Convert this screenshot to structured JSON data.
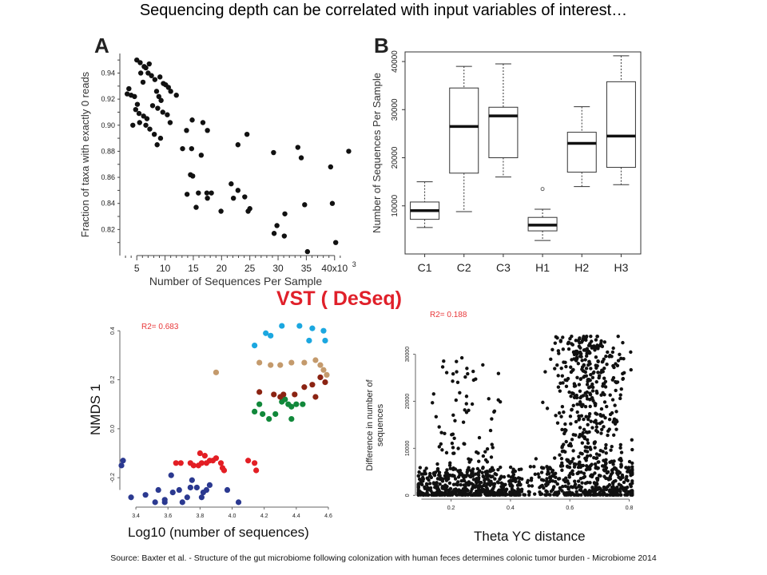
{
  "slide_title": "Sequencing depth can be correlated with input variables of interest…",
  "source_note": "Source:  Baxter et al. - Structure of the gut microbiome following colonization with human feces determines colonic tumor burden - Microbiome 2014",
  "section_heading": "VST ( DeSeq)",
  "colors": {
    "heading_red": "#e0202a",
    "r2_red": "#e8383a",
    "points": "#111111",
    "dark_blue": "#2b3990",
    "red": "#e31e24",
    "green": "#11883a",
    "brown": "#8b2312",
    "tan": "#c49a6c",
    "cyan": "#1ba7e0"
  },
  "chart_data": [
    {
      "panel": "A",
      "type": "scatter",
      "xlabel": "Number of Sequences Per Sample",
      "ylabel": "Fraction of taxa with exactly 0 reads",
      "x_ticks": [
        "5",
        "10",
        "15",
        "20",
        "25",
        "30",
        "35",
        "40x10"
      ],
      "x_tick_values": [
        5,
        10,
        15,
        20,
        25,
        30,
        35,
        40
      ],
      "x_multiplier_exponent": "3",
      "y_ticks": [
        "0.82",
        "0.84",
        "0.86",
        "0.88",
        "0.90",
        "0.92",
        "0.94"
      ],
      "y_tick_values": [
        0.82,
        0.84,
        0.86,
        0.88,
        0.9,
        0.92,
        0.94
      ],
      "xlim": [
        2,
        43
      ],
      "ylim": [
        0.8,
        0.955
      ],
      "points": [
        [
          5.0,
          0.95
        ],
        [
          5.6,
          0.948
        ],
        [
          6.3,
          0.945
        ],
        [
          6.6,
          0.944
        ],
        [
          7.2,
          0.947
        ],
        [
          6.1,
          0.933
        ],
        [
          5.7,
          0.94
        ],
        [
          7.0,
          0.94
        ],
        [
          7.6,
          0.938
        ],
        [
          8.2,
          0.935
        ],
        [
          9.1,
          0.937
        ],
        [
          9.7,
          0.932
        ],
        [
          10.1,
          0.931
        ],
        [
          10.6,
          0.929
        ],
        [
          11.0,
          0.926
        ],
        [
          12.0,
          0.923
        ],
        [
          8.5,
          0.926
        ],
        [
          8.9,
          0.922
        ],
        [
          9.3,
          0.919
        ],
        [
          4.0,
          0.923
        ],
        [
          3.6,
          0.928
        ],
        [
          4.6,
          0.922
        ],
        [
          5.1,
          0.916
        ],
        [
          4.8,
          0.912
        ],
        [
          5.4,
          0.909
        ],
        [
          6.2,
          0.907
        ],
        [
          6.8,
          0.905
        ],
        [
          7.8,
          0.915
        ],
        [
          8.7,
          0.913
        ],
        [
          9.6,
          0.91
        ],
        [
          10.4,
          0.908
        ],
        [
          10.9,
          0.902
        ],
        [
          6.6,
          0.9
        ],
        [
          7.3,
          0.897
        ],
        [
          8.1,
          0.893
        ],
        [
          9.2,
          0.89
        ],
        [
          8.6,
          0.885
        ],
        [
          5.5,
          0.902
        ],
        [
          3.3,
          0.924
        ],
        [
          4.3,
          0.9
        ],
        [
          13.8,
          0.896
        ],
        [
          14.8,
          0.904
        ],
        [
          16.7,
          0.902
        ],
        [
          17.5,
          0.896
        ],
        [
          13.1,
          0.882
        ],
        [
          14.7,
          0.882
        ],
        [
          16.4,
          0.877
        ],
        [
          14.5,
          0.862
        ],
        [
          14.9,
          0.861
        ],
        [
          13.9,
          0.847
        ],
        [
          15.5,
          0.837
        ],
        [
          15.9,
          0.848
        ],
        [
          17.4,
          0.848
        ],
        [
          18.2,
          0.848
        ],
        [
          17.5,
          0.844
        ],
        [
          19.9,
          0.834
        ],
        [
          21.7,
          0.855
        ],
        [
          22.9,
          0.85
        ],
        [
          22.1,
          0.844
        ],
        [
          24.1,
          0.845
        ],
        [
          24.7,
          0.834
        ],
        [
          25.0,
          0.836
        ],
        [
          22.9,
          0.885
        ],
        [
          24.5,
          0.893
        ],
        [
          29.2,
          0.879
        ],
        [
          33.5,
          0.883
        ],
        [
          34.1,
          0.875
        ],
        [
          42.5,
          0.88
        ],
        [
          39.3,
          0.868
        ],
        [
          34.7,
          0.839
        ],
        [
          39.6,
          0.84
        ],
        [
          29.8,
          0.823
        ],
        [
          29.3,
          0.817
        ],
        [
          31.1,
          0.815
        ],
        [
          31.2,
          0.832
        ],
        [
          35.2,
          0.803
        ],
        [
          40.2,
          0.81
        ]
      ]
    },
    {
      "panel": "B",
      "type": "box",
      "ylabel": "Number of Sequences Per Sample",
      "categories": [
        "C1",
        "C2",
        "C3",
        "H1",
        "H2",
        "H3"
      ],
      "y_ticks": [
        "10000",
        "20000",
        "30000",
        "40000"
      ],
      "y_tick_values": [
        10000,
        20000,
        30000,
        40000
      ],
      "ylim": [
        0,
        42000
      ],
      "boxes": [
        {
          "name": "C1",
          "whisker_low": 5500,
          "q1": 7200,
          "median": 9000,
          "q3": 10800,
          "whisker_high": 15000,
          "outliers": []
        },
        {
          "name": "C2",
          "whisker_low": 8800,
          "q1": 16800,
          "median": 26500,
          "q3": 34500,
          "whisker_high": 39000,
          "outliers": []
        },
        {
          "name": "C3",
          "whisker_low": 16000,
          "q1": 20000,
          "median": 28700,
          "q3": 30500,
          "whisker_high": 39500,
          "outliers": []
        },
        {
          "name": "H1",
          "whisker_low": 2800,
          "q1": 4800,
          "median": 6000,
          "q3": 7600,
          "whisker_high": 9300,
          "outliers": [
            13500
          ]
        },
        {
          "name": "H2",
          "whisker_low": 14000,
          "q1": 17000,
          "median": 23000,
          "q3": 25300,
          "whisker_high": 30600,
          "outliers": []
        },
        {
          "name": "H3",
          "whisker_low": 14400,
          "q1": 18000,
          "median": 24500,
          "q3": 35800,
          "whisker_high": 41200,
          "outliers": []
        }
      ]
    },
    {
      "type": "scatter",
      "annotation": "R2= 0.683",
      "xlabel": "Log10 (number of sequences)",
      "ylabel": "NMDS 1",
      "x_ticks": [
        "3.4",
        "3.6",
        "3.8",
        "4.0",
        "4.2",
        "4.4",
        "4.6"
      ],
      "x_tick_values": [
        3.4,
        3.6,
        3.8,
        4.0,
        4.2,
        4.4,
        4.6
      ],
      "y_ticks": [
        "-0.2",
        "0.0",
        "0.2",
        "0.4"
      ],
      "y_tick_values": [
        -0.2,
        0.0,
        0.2,
        0.4
      ],
      "xlim": [
        3.3,
        4.62
      ],
      "ylim": [
        -0.32,
        0.43
      ],
      "series": [
        {
          "color": "dark_blue",
          "points": [
            [
              3.31,
              -0.15
            ],
            [
              3.32,
              -0.13
            ],
            [
              3.37,
              -0.28
            ],
            [
              3.46,
              -0.27
            ],
            [
              3.52,
              -0.3
            ],
            [
              3.54,
              -0.25
            ],
            [
              3.58,
              -0.3
            ],
            [
              3.62,
              -0.19
            ],
            [
              3.63,
              -0.26
            ],
            [
              3.67,
              -0.25
            ],
            [
              3.69,
              -0.3
            ],
            [
              3.72,
              -0.28
            ],
            [
              3.74,
              -0.24
            ],
            [
              3.75,
              -0.21
            ],
            [
              3.78,
              -0.24
            ],
            [
              3.81,
              -0.28
            ],
            [
              3.84,
              -0.25
            ],
            [
              3.86,
              -0.23
            ],
            [
              3.82,
              -0.26
            ],
            [
              3.97,
              -0.25
            ],
            [
              4.04,
              -0.3
            ],
            [
              3.58,
              -0.29
            ]
          ]
        },
        {
          "color": "red",
          "points": [
            [
              3.65,
              -0.14
            ],
            [
              3.68,
              -0.14
            ],
            [
              3.74,
              -0.14
            ],
            [
              3.76,
              -0.15
            ],
            [
              3.79,
              -0.15
            ],
            [
              3.81,
              -0.14
            ],
            [
              3.8,
              -0.1
            ],
            [
              3.83,
              -0.11
            ],
            [
              3.84,
              -0.14
            ],
            [
              3.86,
              -0.13
            ],
            [
              3.88,
              -0.13
            ],
            [
              3.9,
              -0.12
            ],
            [
              3.93,
              -0.14
            ],
            [
              3.94,
              -0.16
            ],
            [
              3.95,
              -0.17
            ],
            [
              4.1,
              -0.13
            ],
            [
              4.14,
              -0.14
            ],
            [
              4.15,
              -0.17
            ]
          ]
        },
        {
          "color": "green",
          "points": [
            [
              4.14,
              0.07
            ],
            [
              4.17,
              0.1
            ],
            [
              4.19,
              0.06
            ],
            [
              4.23,
              0.04
            ],
            [
              4.27,
              0.06
            ],
            [
              4.31,
              0.11
            ],
            [
              4.33,
              0.12
            ],
            [
              4.35,
              0.1
            ],
            [
              4.37,
              0.09
            ],
            [
              4.4,
              0.1
            ],
            [
              4.44,
              0.1
            ],
            [
              4.37,
              0.04
            ]
          ]
        },
        {
          "color": "brown",
          "points": [
            [
              4.17,
              0.15
            ],
            [
              4.26,
              0.14
            ],
            [
              4.3,
              0.13
            ],
            [
              4.32,
              0.14
            ],
            [
              4.39,
              0.14
            ],
            [
              4.45,
              0.17
            ],
            [
              4.5,
              0.18
            ],
            [
              4.52,
              0.13
            ],
            [
              4.55,
              0.21
            ],
            [
              4.58,
              0.19
            ]
          ]
        },
        {
          "color": "tan",
          "points": [
            [
              3.9,
              0.23
            ],
            [
              4.17,
              0.27
            ],
            [
              4.24,
              0.26
            ],
            [
              4.3,
              0.26
            ],
            [
              4.37,
              0.27
            ],
            [
              4.45,
              0.27
            ],
            [
              4.52,
              0.28
            ],
            [
              4.55,
              0.26
            ],
            [
              4.57,
              0.24
            ],
            [
              4.59,
              0.22
            ]
          ]
        },
        {
          "color": "cyan",
          "points": [
            [
              4.14,
              0.34
            ],
            [
              4.21,
              0.39
            ],
            [
              4.24,
              0.38
            ],
            [
              4.31,
              0.42
            ],
            [
              4.42,
              0.42
            ],
            [
              4.5,
              0.41
            ],
            [
              4.57,
              0.4
            ],
            [
              4.58,
              0.36
            ],
            [
              4.48,
              0.36
            ]
          ]
        }
      ]
    },
    {
      "type": "scatter",
      "annotation": "R2= 0.188",
      "xlabel": "Theta YC distance",
      "ylabel": "Difference in number of sequences",
      "x_ticks": [
        "0.2",
        "0.4",
        "0.6",
        "0.8"
      ],
      "x_tick_values": [
        0.2,
        0.4,
        0.6,
        0.8
      ],
      "y_ticks": [
        "0",
        "10000",
        "20000",
        "30000"
      ],
      "y_tick_values": [
        0,
        10000,
        20000,
        30000
      ],
      "xlim": [
        0.08,
        0.82
      ],
      "ylim": [
        -800,
        34000
      ],
      "point_count": 1400,
      "clusters": [
        {
          "x_range": [
            0.08,
            0.44
          ],
          "y_range": [
            0,
            6000
          ],
          "count": 520,
          "x_center": 0.22
        },
        {
          "x_range": [
            0.14,
            0.38
          ],
          "y_range": [
            4000,
            30000
          ],
          "count": 90,
          "x_center": 0.25
        },
        {
          "x_range": [
            0.44,
            0.82
          ],
          "y_range": [
            0,
            8000
          ],
          "count": 380,
          "x_center": 0.62
        },
        {
          "x_range": [
            0.55,
            0.8
          ],
          "y_range": [
            4000,
            34000
          ],
          "count": 410,
          "x_center": 0.66
        }
      ]
    }
  ]
}
